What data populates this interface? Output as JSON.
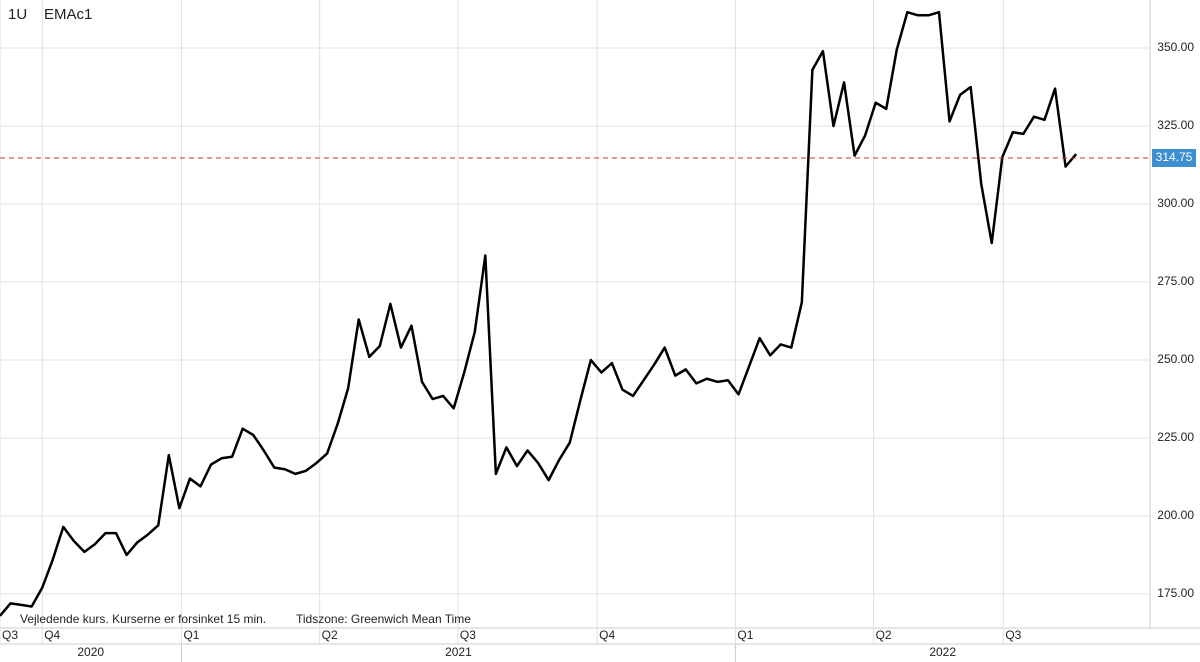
{
  "chart_data": {
    "type": "line",
    "symbol": "1U",
    "name": "EMAc1",
    "footnote": "Vejledende kurs. Kurserne er forsinket 15 min.",
    "timezone": "Tidszone: Greenwich Mean Time",
    "color": "#000000",
    "values": [
      168,
      172,
      171.5,
      171,
      177,
      186,
      196.5,
      192,
      188.5,
      191,
      194.5,
      194.5,
      187.5,
      191.5,
      194,
      197,
      219.5,
      202.5,
      212,
      209.5,
      216.5,
      218.5,
      219,
      228,
      226,
      221,
      215.5,
      215,
      213.5,
      214.5,
      217,
      220,
      229.5,
      241,
      263,
      251,
      254.5,
      268,
      254,
      261,
      243,
      237.5,
      238.5,
      234.5,
      246,
      259,
      283.5,
      213.5,
      222,
      216,
      221,
      217,
      211.5,
      218,
      223.5,
      237,
      250,
      246,
      249,
      240.5,
      238.5,
      243.5,
      248.5,
      254,
      245,
      247,
      242.5,
      244,
      243,
      243.5,
      239,
      248,
      257,
      251.5,
      255,
      254,
      268.5,
      343,
      349,
      325,
      339,
      315.5,
      322,
      332.5,
      330.5,
      349.5,
      361.5,
      360.5,
      360.5,
      361.5,
      326.5,
      335,
      337.5,
      306.5,
      287.5,
      315,
      323,
      322.5,
      328,
      327,
      337,
      312,
      316
    ],
    "last_price": 314.75,
    "last_price_color": "#3d8fd0",
    "last_price_line_color": "#c0392b",
    "xlim": [
      0,
      109
    ],
    "xticks": [
      {
        "value": 0,
        "label": "Q3"
      },
      {
        "value": 4,
        "label": "Q4"
      },
      {
        "value": 17.2,
        "label": "Q1"
      },
      {
        "value": 30.3,
        "label": "Q2"
      },
      {
        "value": 43.4,
        "label": "Q3"
      },
      {
        "value": 56.6,
        "label": "Q4"
      },
      {
        "value": 69.7,
        "label": "Q1"
      },
      {
        "value": 82.8,
        "label": "Q2"
      },
      {
        "value": 95.1,
        "label": "Q3"
      }
    ],
    "years": [
      "2020",
      "2021",
      "2022"
    ],
    "ylim": [
      164.1,
      365.4
    ],
    "yticks": [
      {
        "value": 175,
        "label": "175.00"
      },
      {
        "value": 200,
        "label": "200.00"
      },
      {
        "value": 225,
        "label": "225.00"
      },
      {
        "value": 250,
        "label": "250.00"
      },
      {
        "value": 275,
        "label": "275.00"
      },
      {
        "value": 300,
        "label": "300.00"
      },
      {
        "value": 325,
        "label": "325.00"
      },
      {
        "value": 350,
        "label": "350.00"
      }
    ],
    "grid": true
  }
}
